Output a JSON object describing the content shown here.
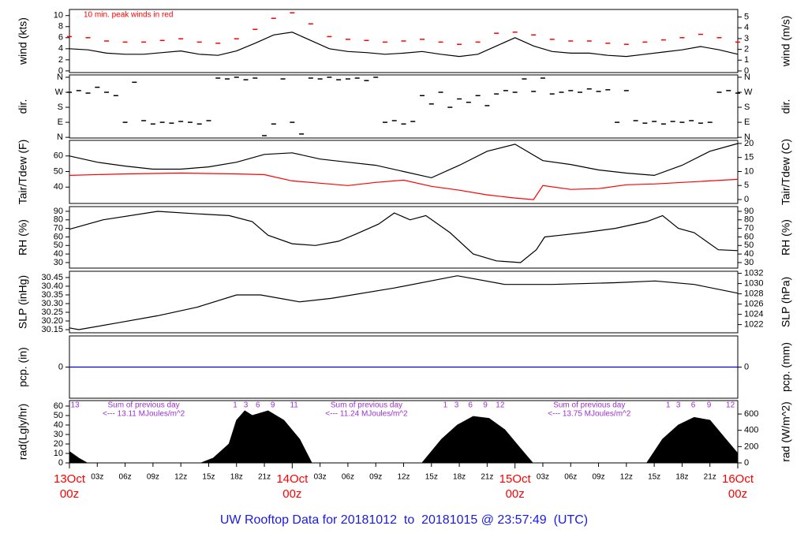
{
  "title": "UW Rooftop Data for 20181012  to  20181015 @ 23:57:49  (UTC)",
  "x_axis": {
    "xlim": [
      0,
      72
    ],
    "xticks": [
      {
        "value": 3,
        "label": "03z"
      },
      {
        "value": 6,
        "label": "06z"
      },
      {
        "value": 9,
        "label": "09z"
      },
      {
        "value": 12,
        "label": "12z"
      },
      {
        "value": 15,
        "label": "15z"
      },
      {
        "value": 18,
        "label": "18z"
      },
      {
        "value": 21,
        "label": "21z"
      },
      {
        "value": 27,
        "label": "03z"
      },
      {
        "value": 30,
        "label": "06z"
      },
      {
        "value": 33,
        "label": "09z"
      },
      {
        "value": 36,
        "label": "12z"
      },
      {
        "value": 39,
        "label": "15z"
      },
      {
        "value": 42,
        "label": "18z"
      },
      {
        "value": 45,
        "label": "21z"
      },
      {
        "value": 51,
        "label": "03z"
      },
      {
        "value": 54,
        "label": "06z"
      },
      {
        "value": 57,
        "label": "09z"
      },
      {
        "value": 60,
        "label": "12z"
      },
      {
        "value": 63,
        "label": "15z"
      },
      {
        "value": 66,
        "label": "18z"
      },
      {
        "value": 69,
        "label": "21z"
      }
    ],
    "date_ticks": [
      {
        "value": 0,
        "label": "13Oct",
        "sub": "00z"
      },
      {
        "value": 24,
        "label": "14Oct",
        "sub": "00z"
      },
      {
        "value": 48,
        "label": "15Oct",
        "sub": "00z"
      },
      {
        "value": 72,
        "label": "16Oct",
        "sub": "00z"
      }
    ],
    "date_color": "#ff0000"
  },
  "chart_data": [
    {
      "type": "line",
      "ylabel": "wind (kts)",
      "y2label": "wind (m/s)",
      "annotation": "10 min. peak winds in red",
      "annotation_color": "#ff0000",
      "ylim": [
        -0.3,
        11.1
      ],
      "yticks": [
        0,
        2,
        4,
        6,
        8,
        10
      ],
      "y2lim": [
        -0.15,
        5.7
      ],
      "y2ticks": [
        0,
        1,
        2,
        3,
        4,
        5
      ],
      "series": [
        {
          "color": "#000000",
          "x": [
            0,
            2,
            4,
            6,
            8,
            10,
            12,
            14,
            16,
            18,
            20,
            22,
            24,
            26,
            28,
            30,
            32,
            34,
            36,
            38,
            40,
            42,
            44,
            46,
            48,
            50,
            52,
            54,
            56,
            58,
            60,
            62,
            64,
            66,
            68,
            70,
            72
          ],
          "values": [
            4.0,
            3.8,
            3.2,
            3.0,
            3.0,
            3.3,
            3.6,
            3.0,
            2.8,
            3.6,
            5.0,
            6.5,
            7.0,
            5.5,
            4.0,
            3.5,
            3.3,
            3.0,
            3.2,
            3.5,
            3.0,
            2.6,
            3.0,
            4.5,
            6.0,
            4.5,
            3.5,
            3.2,
            3.2,
            2.8,
            2.6,
            3.0,
            3.4,
            3.8,
            4.4,
            3.8,
            3.0
          ]
        },
        {
          "color": "#ff0000",
          "marker": "dash",
          "x": [
            0,
            2,
            4,
            6,
            8,
            10,
            12,
            14,
            16,
            18,
            20,
            22,
            24,
            26,
            28,
            30,
            32,
            34,
            36,
            38,
            40,
            42,
            44,
            46,
            48,
            50,
            52,
            54,
            56,
            58,
            60,
            62,
            64,
            66,
            68,
            70,
            72
          ],
          "values": [
            6.2,
            6.0,
            5.4,
            5.2,
            5.2,
            5.5,
            5.8,
            5.2,
            5.0,
            5.8,
            7.5,
            9.5,
            10.5,
            8.5,
            6.2,
            5.7,
            5.5,
            5.2,
            5.4,
            5.7,
            5.2,
            4.8,
            5.2,
            6.8,
            7.0,
            6.5,
            5.7,
            5.4,
            5.4,
            5.0,
            4.8,
            5.2,
            5.6,
            6.0,
            6.6,
            6.0,
            5.2
          ]
        }
      ]
    },
    {
      "type": "scatter",
      "ylabel": "dir.",
      "y2label": "dir.",
      "ylim": [
        -4,
        374
      ],
      "yticks": [
        {
          "value": 0,
          "label": "N"
        },
        {
          "value": 90,
          "label": "E"
        },
        {
          "value": 180,
          "label": "S"
        },
        {
          "value": 270,
          "label": "W"
        },
        {
          "value": 360,
          "label": "N"
        }
      ],
      "y2lim": [
        -4,
        374
      ],
      "y2ticks": [
        {
          "value": 0,
          "label": "N"
        },
        {
          "value": 90,
          "label": "E"
        },
        {
          "value": 180,
          "label": "S"
        },
        {
          "value": 270,
          "label": "W"
        },
        {
          "value": 360,
          "label": "N"
        }
      ],
      "series": [
        {
          "color": "#000000",
          "x": [
            0,
            1,
            2,
            3,
            4,
            5,
            6,
            7,
            8,
            9,
            10,
            11,
            12,
            13,
            14,
            15,
            16,
            17,
            18,
            19,
            20,
            21,
            22,
            23,
            24,
            25,
            26,
            27,
            28,
            29,
            30,
            31,
            32,
            33,
            34,
            35,
            36,
            37,
            38,
            39,
            40,
            41,
            42,
            43,
            44,
            45,
            46,
            47,
            48,
            49,
            50,
            51,
            52,
            53,
            54,
            55,
            56,
            57,
            58,
            59,
            60,
            61,
            62,
            63,
            64,
            65,
            66,
            67,
            68,
            69,
            70,
            71,
            72
          ],
          "values": [
            270,
            280,
            265,
            300,
            270,
            250,
            90,
            330,
            100,
            80,
            90,
            85,
            95,
            90,
            80,
            100,
            355,
            350,
            360,
            345,
            355,
            10,
            80,
            350,
            90,
            20,
            355,
            350,
            360,
            345,
            350,
            355,
            340,
            360,
            90,
            100,
            80,
            95,
            250,
            200,
            270,
            180,
            230,
            210,
            250,
            190,
            260,
            280,
            270,
            350,
            275,
            355,
            260,
            270,
            280,
            270,
            290,
            275,
            285,
            90,
            280,
            100,
            85,
            95,
            80,
            95,
            90,
            100,
            85,
            90,
            270,
            280,
            265
          ]
        }
      ]
    },
    {
      "type": "line",
      "ylabel": "Tair/Tdew (F)",
      "y2label": "Tair/Tdew (C)",
      "ylim": [
        29.5,
        70
      ],
      "yticks": [
        40,
        50,
        60
      ],
      "y2lim": [
        -1.4,
        21.1
      ],
      "y2ticks": [
        0,
        5,
        10,
        15,
        20
      ],
      "series": [
        {
          "color": "#000000",
          "x": [
            0,
            3,
            6,
            9,
            12,
            15,
            18,
            21,
            24,
            27,
            30,
            33,
            36,
            39,
            42,
            45,
            48,
            51,
            54,
            57,
            60,
            63,
            66,
            69,
            72
          ],
          "values": [
            60,
            56,
            53.5,
            51.5,
            51.5,
            53,
            56,
            61,
            62,
            58,
            56,
            54,
            50,
            46,
            54,
            63,
            67.5,
            57,
            54.5,
            51,
            49,
            47.5,
            54,
            63,
            68
          ]
        },
        {
          "color": "#ff0000",
          "x": [
            0,
            6,
            12,
            18,
            21,
            24,
            27,
            30,
            33,
            36,
            39,
            42,
            45,
            48,
            50,
            51,
            54,
            57,
            60,
            63,
            66,
            69,
            72
          ],
          "values": [
            47.5,
            48.5,
            49,
            48.5,
            48,
            44,
            42.5,
            41,
            43,
            44.5,
            40.5,
            38,
            35,
            33,
            32,
            41,
            38.5,
            39,
            41.5,
            42,
            43,
            44,
            45
          ]
        }
      ]
    },
    {
      "type": "line",
      "ylabel": "RH (%)",
      "y2label": "RH (%)",
      "ylim": [
        23.5,
        95.5
      ],
      "yticks": [
        30,
        40,
        50,
        60,
        70,
        80,
        90
      ],
      "y2lim": [
        23.5,
        95.5
      ],
      "y2ticks": [
        30,
        40,
        50,
        60,
        70,
        80,
        90
      ],
      "series": [
        {
          "color": "#000000",
          "x": [
            0,
            3.6,
            9.5,
            13.8,
            17.2,
            19.7,
            21.4,
            24,
            26.5,
            29,
            30.8,
            33.3,
            35,
            36.7,
            38.4,
            41,
            43.5,
            46,
            48.6,
            50.3,
            51.2,
            52.9,
            55.4,
            58.8,
            62.2,
            63.9,
            65.6,
            67.3,
            69.9,
            72
          ],
          "values": [
            69,
            80,
            90,
            87,
            85,
            78,
            62,
            52,
            50,
            55,
            63,
            75,
            88,
            80,
            85,
            65,
            40,
            32,
            30,
            45,
            60,
            62,
            65,
            70,
            78,
            85,
            70,
            65,
            45,
            44
          ]
        }
      ]
    },
    {
      "type": "line",
      "ylabel": "SLP (inHg)",
      "y2label": "SLP (hPa)",
      "ylim": [
        30.132,
        30.486
      ],
      "yticks": [
        30.15,
        {
          "value": 30.2,
          "label": "30.20"
        },
        30.25,
        {
          "value": 30.3,
          "label": "30.30"
        },
        30.35,
        {
          "value": 30.4,
          "label": "30.40"
        },
        30.45
      ],
      "y2lim": [
        1020.4,
        1032.4
      ],
      "y2ticks": [
        1022,
        1024,
        1026,
        1028,
        1030,
        1032
      ],
      "series": [
        {
          "color": "#000000",
          "x": [
            0,
            1,
            5.3,
            9.5,
            13.8,
            18,
            20.6,
            24.8,
            28.2,
            35,
            41.8,
            46.9,
            52,
            58.8,
            63.1,
            67.3,
            72
          ],
          "values": [
            30.16,
            30.15,
            30.19,
            30.23,
            30.28,
            30.35,
            30.35,
            30.31,
            30.33,
            30.39,
            30.46,
            30.41,
            30.41,
            30.42,
            30.43,
            30.41,
            30.36
          ]
        }
      ]
    },
    {
      "type": "line",
      "ylabel": "pcp. (in)",
      "y2label": "pcp. (mm)",
      "ylim": [
        -0.1,
        0.1
      ],
      "yticks": [
        0
      ],
      "y2lim": [
        -2.54,
        2.54
      ],
      "y2ticks": [
        0
      ],
      "series": [
        {
          "color": "#0000ff",
          "x": [
            0,
            72
          ],
          "values": [
            0,
            0
          ]
        }
      ]
    },
    {
      "type": "area",
      "ylabel": "rad(Lgly/hr)",
      "y2label": "rad (W/m^2)",
      "ylim": [
        0,
        65.8
      ],
      "yticks": [
        0,
        10,
        20,
        30,
        40,
        50,
        60
      ],
      "y2lim": [
        0,
        765
      ],
      "y2ticks": [
        0,
        200,
        400,
        600
      ],
      "annotation_color": "#9b30d0",
      "day_sums": [
        [
          "Sum of previous day",
          "<--- 13.11 MJoules/m^2"
        ],
        [
          "Sum of previous day",
          "<--- 11.24 MJoules/m^2"
        ],
        [
          "Sum of previous day",
          "<--- 13.75 MJoules/m^2"
        ]
      ],
      "hour_marks": {
        "x": [
          0.6,
          17.85,
          19,
          20.3,
          21.9,
          24.2,
          40.5,
          41.7,
          43.2,
          44.8,
          46.4,
          64.5,
          65.6,
          67.2,
          68.9,
          71.2
        ],
        "labels": [
          "13",
          "1",
          "3",
          "6",
          "9",
          "11",
          "1",
          "3",
          "6",
          "9",
          "12",
          "1",
          "3",
          "6",
          "9",
          "12"
        ]
      },
      "series": [
        {
          "color": "#000000",
          "x": [
            0,
            1,
            1.9,
            14.2,
            15.5,
            17.2,
            18,
            18.9,
            19.7,
            21.4,
            23.1,
            24.8,
            26.1,
            38,
            40.1,
            41.8,
            43.5,
            45.2,
            46.9,
            48.6,
            49.9,
            62.2,
            63.9,
            65.6,
            67.3,
            69,
            70.7,
            72
          ],
          "values": [
            12,
            5,
            0,
            0,
            5,
            20,
            45,
            55,
            50,
            55,
            45,
            25,
            0,
            0,
            25,
            40,
            49,
            47,
            35,
            15,
            0,
            0,
            25,
            40,
            48,
            45,
            25,
            10
          ]
        }
      ]
    }
  ]
}
